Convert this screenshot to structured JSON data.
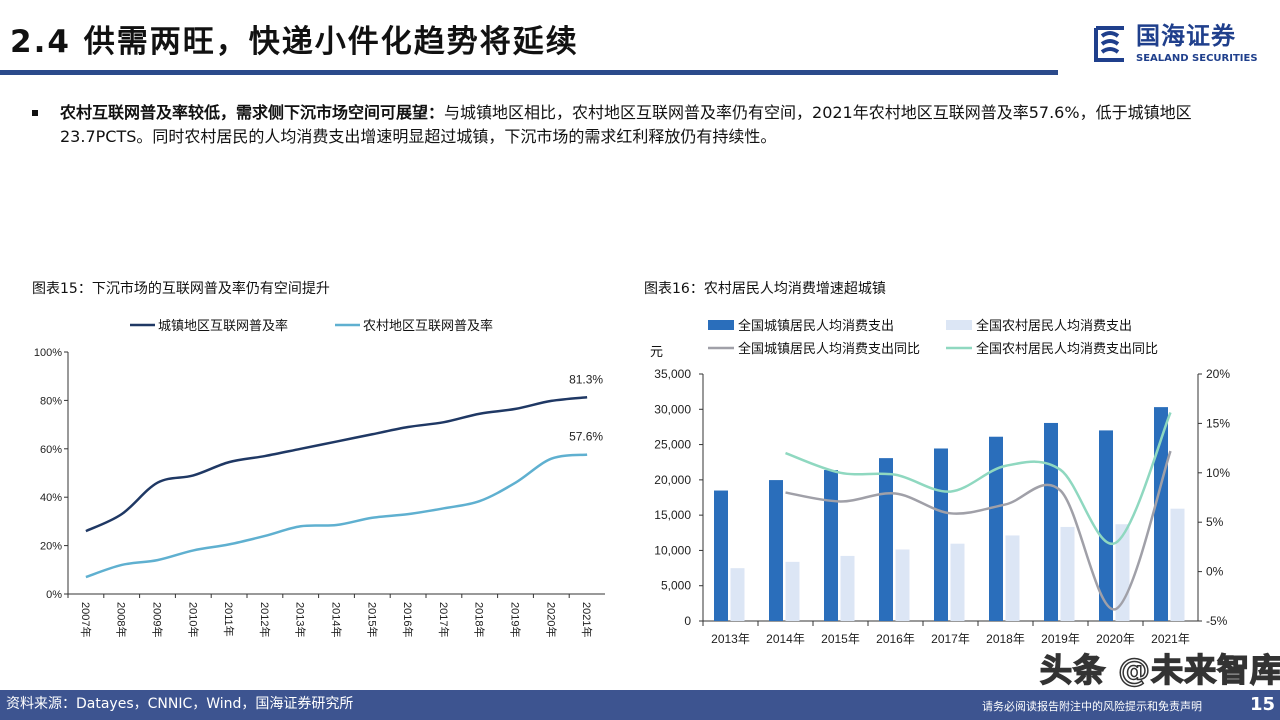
{
  "header": {
    "title": "2.4 供需两旺，快递小件化趋势将延续",
    "logo_cn": "国海证券",
    "logo_en": "SEALAND SECURITIES",
    "accent": "#2b4a8b"
  },
  "bullet": {
    "bold": "农村互联网普及率较低，需求侧下沉市场空间可展望：",
    "text": "与城镇地区相比，农村地区互联网普及率仍有空间，2021年农村地区互联网普及率57.6%，低于城镇地区23.7PCTS。同时农村居民的人均消费支出增速明显超过城镇，下沉市场的需求红利释放仍有持续性。"
  },
  "footer": {
    "source": "资料来源：Datayes，CNNIC，Wind，国海证券研究所",
    "disclaimer": "请务必阅读报告附注中的风险提示和免责声明",
    "page": "15",
    "watermark": "头条 @未来智库"
  },
  "chart_data": [
    {
      "type": "line",
      "title": "图表15：下沉市场的互联网普及率仍有空间提升",
      "categories": [
        "2007年",
        "2008年",
        "2009年",
        "2010年",
        "2011年",
        "2012年",
        "2013年",
        "2014年",
        "2015年",
        "2016年",
        "2017年",
        "2018年",
        "2019年",
        "2020年",
        "2021年"
      ],
      "yticks": [
        "0%",
        "20%",
        "40%",
        "60%",
        "80%",
        "100%"
      ],
      "ylim": [
        0,
        100
      ],
      "grid": false,
      "legend": "top",
      "series": [
        {
          "name": "城镇地区互联网普及率",
          "color": "#1f3864",
          "values": [
            26,
            33,
            46,
            49,
            54.5,
            57,
            60,
            63,
            66,
            69,
            71,
            74.5,
            76.5,
            79.8,
            81.3
          ],
          "end_label": "81.3%"
        },
        {
          "name": "农村地区互联网普及率",
          "color": "#5fb0d0",
          "values": [
            7,
            12,
            14,
            18,
            20.5,
            24,
            28,
            28.5,
            31.5,
            33,
            35.4,
            38.4,
            46,
            55.9,
            57.6
          ],
          "end_label": "57.6%"
        }
      ]
    },
    {
      "type": "bar+line",
      "title": "图表16：农村居民人均消费增速超城镇",
      "yunit": "元",
      "categories": [
        "2013年",
        "2014年",
        "2015年",
        "2016年",
        "2017年",
        "2018年",
        "2019年",
        "2020年",
        "2021年"
      ],
      "yticks": [
        "0",
        "5,000",
        "10,000",
        "15,000",
        "20,000",
        "25,000",
        "30,000",
        "35,000"
      ],
      "ylim": [
        0,
        35000
      ],
      "y2ticks": [
        "-5%",
        "0%",
        "5%",
        "10%",
        "15%",
        "20%"
      ],
      "y2lim": [
        -5,
        20
      ],
      "grid": false,
      "legend": "top",
      "bars": [
        {
          "name": "全国城镇居民人均消费支出",
          "color": "#2a6ebb",
          "values": [
            18488,
            19968,
            21392,
            23079,
            24445,
            26112,
            28063,
            27007,
            30307
          ]
        },
        {
          "name": "全国农村居民人均消费支出",
          "color": "#dce6f5",
          "values": [
            7485,
            8383,
            9223,
            10130,
            10955,
            12124,
            13328,
            13713,
            15916
          ]
        }
      ],
      "lines": [
        {
          "name": "全国城镇居民人均消费支出同比",
          "color": "#a0a0a8",
          "values": [
            null,
            8.0,
            7.1,
            7.9,
            5.9,
            6.8,
            8.2,
            -3.8,
            12.2
          ]
        },
        {
          "name": "全国农村居民人均消费支出同比",
          "color": "#8fd8c0",
          "values": [
            null,
            12.0,
            10.0,
            9.8,
            8.1,
            10.7,
            10.3,
            2.9,
            16.1
          ]
        }
      ]
    }
  ]
}
